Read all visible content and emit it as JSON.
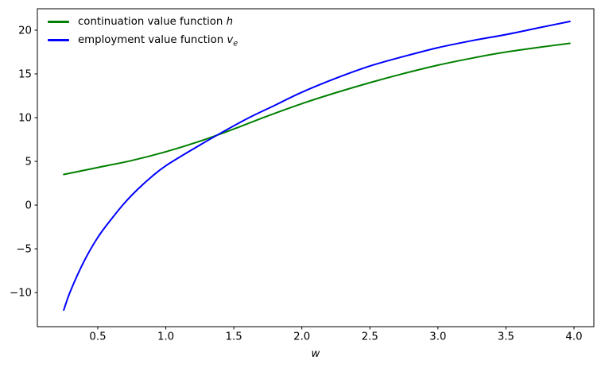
{
  "figure": {
    "background": "#ffffff"
  },
  "chart_data": {
    "type": "line",
    "title": "",
    "xlabel": "w",
    "ylabel": "",
    "xlim": [
      0.056,
      4.146
    ],
    "ylim": [
      -13.9,
      22.45
    ],
    "grid": false,
    "xticks": {
      "values": [
        0.5,
        1.0,
        1.5,
        2.0,
        2.5,
        3.0,
        3.5,
        4.0
      ],
      "labels": [
        "0.5",
        "1.0",
        "1.5",
        "2.0",
        "2.5",
        "3.0",
        "3.5",
        "4.0"
      ]
    },
    "yticks": {
      "values": [
        -10,
        -5,
        0,
        5,
        10,
        15,
        20
      ],
      "labels": [
        "−10",
        "−5",
        "0",
        "5",
        "10",
        "15",
        "20"
      ]
    },
    "series": [
      {
        "name": "continuation value function h",
        "color": "#008000",
        "linewidth": 2,
        "x": [
          0.25,
          0.5,
          0.75,
          1.0,
          1.25,
          1.5,
          1.75,
          2.0,
          2.25,
          2.5,
          2.75,
          3.0,
          3.25,
          3.5,
          3.75,
          3.97
        ],
        "y": [
          3.5,
          4.3,
          5.1,
          6.1,
          7.3,
          8.7,
          10.2,
          11.6,
          12.85,
          14.0,
          15.05,
          16.0,
          16.8,
          17.5,
          18.05,
          18.5
        ]
      },
      {
        "name": "employment value function v_e",
        "color": "#0000ff",
        "linewidth": 2,
        "x": [
          0.25,
          0.3,
          0.4,
          0.5,
          0.6,
          0.7,
          0.8,
          0.9,
          1.0,
          1.2,
          1.4,
          1.6,
          1.8,
          2.0,
          2.25,
          2.5,
          2.75,
          3.0,
          3.25,
          3.5,
          3.75,
          3.97
        ],
        "y": [
          -12.0,
          -9.8,
          -6.4,
          -3.7,
          -1.6,
          0.3,
          1.9,
          3.3,
          4.5,
          6.4,
          8.2,
          9.9,
          11.4,
          12.9,
          14.5,
          15.9,
          17.0,
          18.0,
          18.8,
          19.5,
          20.3,
          21.0
        ]
      }
    ],
    "legend": {
      "location": "upper left",
      "frame": false,
      "entries": [
        {
          "label": "continuation value function ",
          "math_base": "h",
          "math_sub": ""
        },
        {
          "label": "employment value function ",
          "math_base": "v",
          "math_sub": "e"
        }
      ]
    },
    "spine_color": "#000000",
    "tick_color": "#000000"
  }
}
